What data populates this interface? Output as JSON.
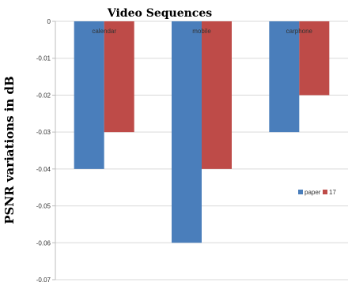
{
  "chart_data": {
    "type": "bar",
    "title": "Video Sequences",
    "ylabel": "PSNR variations in dB",
    "xlabel": "",
    "categories": [
      "calendar",
      "mobile",
      "carphone"
    ],
    "series": [
      {
        "name": "paper",
        "values": [
          -0.04,
          -0.06,
          -0.03
        ],
        "color": "#4a7ebb"
      },
      {
        "name": "17",
        "values": [
          -0.03,
          -0.04,
          -0.02
        ],
        "color": "#be4b48"
      }
    ],
    "ylim": [
      -0.07,
      0
    ],
    "yticks": [
      "0",
      "-0.01",
      "-0.02",
      "-0.03",
      "-0.04",
      "-0.05",
      "-0.06",
      "-0.07"
    ],
    "grid": true,
    "legend": "right"
  }
}
